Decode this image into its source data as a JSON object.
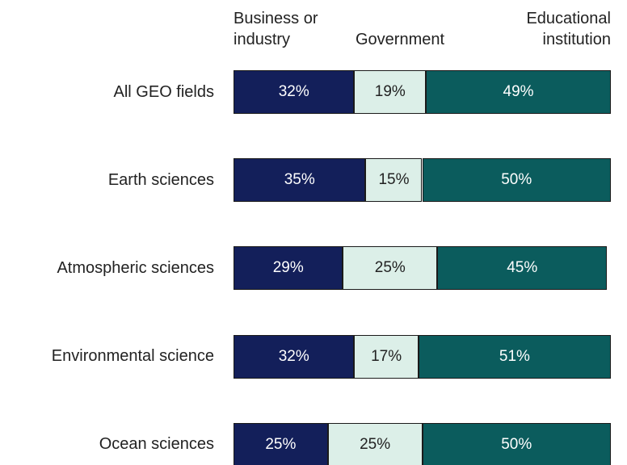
{
  "chart_data": {
    "type": "bar",
    "orientation": "horizontal",
    "stacked": true,
    "categories": [
      "All GEO fields",
      "Earth sciences",
      "Atmospheric sciences",
      "Environmental science",
      "Ocean sciences"
    ],
    "series": [
      {
        "name": "Business or industry",
        "color": "#131f5a",
        "label_color": "#ffffff",
        "values": [
          32,
          35,
          29,
          32,
          25
        ],
        "value_labels": [
          "32%",
          "35%",
          "29%",
          "32%",
          "25%"
        ]
      },
      {
        "name": "Government",
        "color": "#dcefe8",
        "label_color": "#222222",
        "values": [
          19,
          15,
          25,
          17,
          25
        ],
        "value_labels": [
          "19%",
          "15%",
          "25%",
          "17%",
          "25%"
        ]
      },
      {
        "name": "Educational institution",
        "color": "#0b5c5d",
        "label_color": "#ffffff",
        "values": [
          49,
          50,
          45,
          51,
          50
        ],
        "value_labels": [
          "49%",
          "50%",
          "45%",
          "51%",
          "50%"
        ]
      }
    ],
    "xlim": [
      0,
      100
    ]
  }
}
